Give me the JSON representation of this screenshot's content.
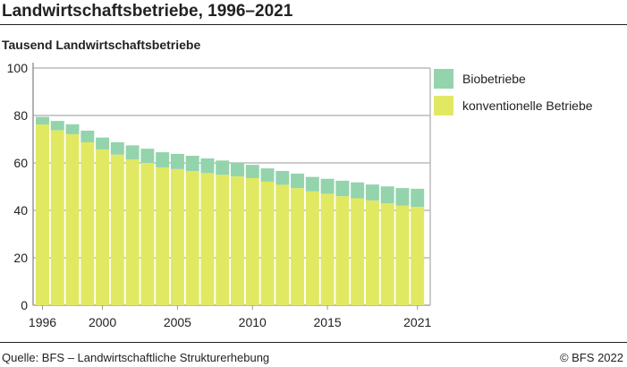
{
  "header": {
    "title": "Landwirtschaftsbetriebe, 1996–2021",
    "subtitle": "Tausend Landwirtschaftsbetriebe"
  },
  "footer": {
    "source": "Quelle: BFS – Landwirtschaftliche Strukturerhebung",
    "copyright": "© BFS 2022"
  },
  "chart_data": {
    "type": "bar",
    "stacked": true,
    "title": "Landwirtschaftsbetriebe, 1996–2021",
    "ylabel": "Tausend Landwirtschaftsbetriebe",
    "ylim": [
      0,
      100
    ],
    "yticks": [
      0,
      20,
      40,
      60,
      80,
      100
    ],
    "xticks": [
      "1996",
      "2000",
      "2005",
      "2010",
      "2015",
      "2021"
    ],
    "grid": true,
    "legend": "right",
    "categories": [
      "1996",
      "1997",
      "1998",
      "1999",
      "2000",
      "2001",
      "2002",
      "2003",
      "2004",
      "2005",
      "2006",
      "2007",
      "2008",
      "2009",
      "2010",
      "2011",
      "2012",
      "2013",
      "2014",
      "2015",
      "2016",
      "2017",
      "2018",
      "2019",
      "2020",
      "2021"
    ],
    "series": [
      {
        "name": "konventionelle Betriebe",
        "color": "#e1e962",
        "values": [
          76.2,
          73.8,
          72.1,
          68.7,
          65.7,
          63.5,
          61.5,
          60.0,
          58.1,
          57.4,
          56.6,
          55.7,
          55.0,
          54.3,
          53.6,
          52.1,
          50.8,
          49.4,
          48.0,
          47.0,
          46.0,
          45.1,
          44.2,
          43.0,
          42.0,
          41.5
        ]
      },
      {
        "name": "Biobetriebe",
        "color": "#93d4ac",
        "values": [
          3.2,
          3.9,
          4.2,
          4.9,
          5.0,
          5.2,
          5.9,
          6.0,
          6.4,
          6.4,
          6.4,
          6.2,
          6.0,
          5.8,
          5.6,
          5.6,
          5.8,
          6.1,
          6.1,
          6.3,
          6.5,
          6.7,
          6.7,
          7.1,
          7.4,
          7.6
        ]
      }
    ]
  }
}
